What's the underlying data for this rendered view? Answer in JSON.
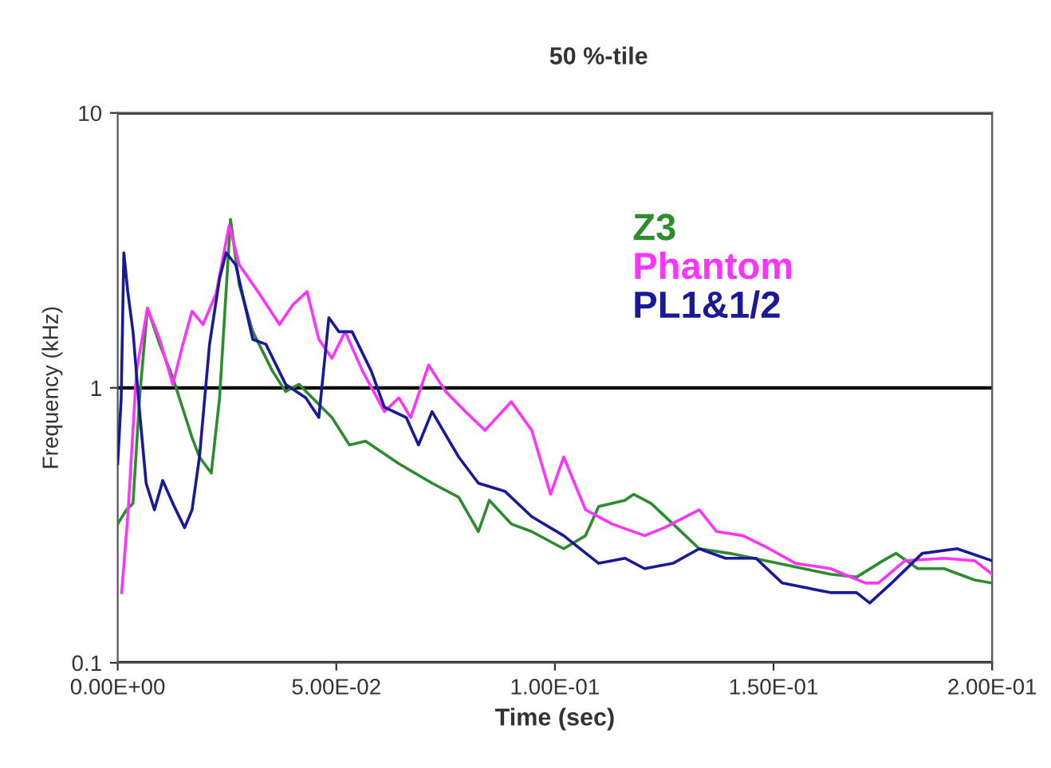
{
  "chart_data": {
    "type": "line",
    "title": "50 %-tile",
    "xlabel": "Time (sec)",
    "ylabel": "Frequency (kHz)",
    "log": "y",
    "grid": "y",
    "legend": "top right",
    "line_style": "solid",
    "xlim": [
      0,
      0.2
    ],
    "xticks": [
      {
        "value": 0,
        "label": "0.00E+00"
      },
      {
        "value": 0.05,
        "label": "5.00E-02"
      },
      {
        "value": 0.1,
        "label": "1.00E-01"
      },
      {
        "value": 0.15,
        "label": "1.50E-01"
      },
      {
        "value": 0.2,
        "label": "2.00E-01"
      }
    ],
    "ylim": [
      0.1,
      10
    ],
    "yticks": [
      0.1,
      1,
      10
    ],
    "series": [
      {
        "name": "Z3",
        "color": "#2e8b2e",
        "x": [
          0,
          0.002,
          0.0035,
          0.005,
          0.0068,
          0.0096,
          0.0126,
          0.017,
          0.0187,
          0.0214,
          0.0233,
          0.0258,
          0.0278,
          0.0309,
          0.0354,
          0.0384,
          0.0415,
          0.0445,
          0.049,
          0.053,
          0.0567,
          0.0643,
          0.0719,
          0.078,
          0.0825,
          0.085,
          0.09,
          0.0947,
          0.102,
          0.107,
          0.11,
          0.116,
          0.118,
          0.122,
          0.127,
          0.133,
          0.14,
          0.151,
          0.163,
          0.169,
          0.175,
          0.178,
          0.183,
          0.189,
          0.196,
          0.2
        ],
        "values": [
          0.32,
          0.36,
          0.38,
          0.92,
          1.95,
          1.44,
          1.09,
          0.66,
          0.56,
          0.49,
          0.92,
          4.1,
          2.37,
          1.6,
          1.15,
          0.97,
          1.03,
          0.92,
          0.78,
          0.62,
          0.64,
          0.53,
          0.45,
          0.4,
          0.3,
          0.39,
          0.32,
          0.3,
          0.26,
          0.29,
          0.37,
          0.39,
          0.41,
          0.38,
          0.32,
          0.26,
          0.25,
          0.23,
          0.21,
          0.205,
          0.235,
          0.25,
          0.22,
          0.22,
          0.2,
          0.195
        ]
      },
      {
        "name": "Phantom",
        "color": "#ff33ff",
        "x": [
          0.0009,
          0.0023,
          0.0043,
          0.0068,
          0.0096,
          0.0126,
          0.0149,
          0.017,
          0.0195,
          0.0225,
          0.0255,
          0.0278,
          0.0324,
          0.037,
          0.04,
          0.0433,
          0.046,
          0.049,
          0.052,
          0.056,
          0.061,
          0.0643,
          0.067,
          0.0711,
          0.075,
          0.0795,
          0.084,
          0.09,
          0.0947,
          0.099,
          0.102,
          0.107,
          0.113,
          0.1205,
          0.125,
          0.133,
          0.137,
          0.143,
          0.149,
          0.155,
          0.163,
          0.171,
          0.174,
          0.18,
          0.189,
          0.196,
          0.2
        ],
        "values": [
          0.18,
          0.34,
          1.15,
          1.95,
          1.5,
          1.03,
          1.44,
          1.9,
          1.7,
          2.2,
          3.9,
          2.8,
          2.2,
          1.7,
          2.0,
          2.24,
          1.5,
          1.28,
          1.6,
          1.15,
          0.82,
          0.92,
          0.78,
          1.21,
          0.97,
          0.82,
          0.7,
          0.89,
          0.7,
          0.41,
          0.56,
          0.36,
          0.32,
          0.29,
          0.31,
          0.36,
          0.3,
          0.29,
          0.26,
          0.23,
          0.22,
          0.195,
          0.195,
          0.235,
          0.24,
          0.235,
          0.21
        ]
      },
      {
        "name": "PL1&1/2",
        "color": "#1a1a99",
        "x": [
          0,
          0.0008,
          0.0014,
          0.0023,
          0.0035,
          0.005,
          0.0065,
          0.0084,
          0.0103,
          0.0126,
          0.0153,
          0.017,
          0.0187,
          0.021,
          0.0233,
          0.0248,
          0.027,
          0.0309,
          0.0339,
          0.0384,
          0.043,
          0.046,
          0.0483,
          0.0506,
          0.0536,
          0.058,
          0.061,
          0.066,
          0.0688,
          0.0719,
          0.078,
          0.0825,
          0.0886,
          0.0947,
          0.102,
          0.11,
          0.116,
          0.1205,
          0.127,
          0.133,
          0.139,
          0.146,
          0.152,
          0.163,
          0.169,
          0.172,
          0.177,
          0.184,
          0.192,
          0.2
        ],
        "values": [
          0.53,
          0.92,
          3.1,
          2.24,
          1.6,
          0.82,
          0.45,
          0.36,
          0.46,
          0.38,
          0.31,
          0.36,
          0.56,
          1.44,
          2.5,
          3.1,
          2.8,
          1.5,
          1.44,
          1.03,
          0.92,
          0.78,
          1.8,
          1.6,
          1.6,
          1.15,
          0.85,
          0.78,
          0.62,
          0.82,
          0.56,
          0.45,
          0.42,
          0.34,
          0.29,
          0.23,
          0.24,
          0.22,
          0.23,
          0.26,
          0.24,
          0.24,
          0.195,
          0.18,
          0.18,
          0.165,
          0.195,
          0.25,
          0.26,
          0.235
        ]
      }
    ]
  }
}
